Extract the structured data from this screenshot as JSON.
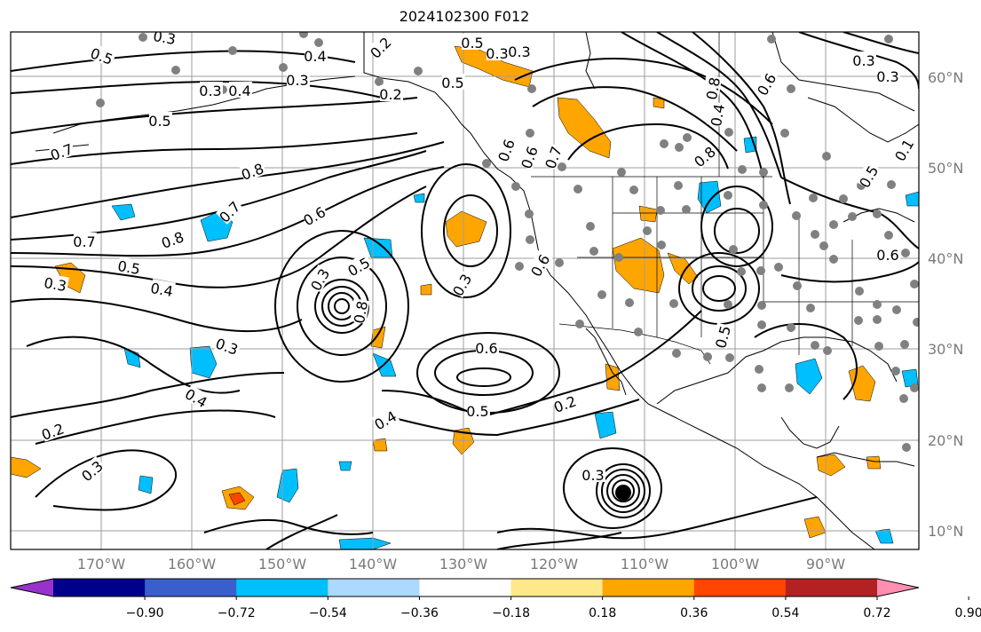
{
  "title": "2024102300 F012",
  "map": {
    "lat_labels": [
      "60°N",
      "50°N",
      "40°N",
      "30°N",
      "20°N",
      "10°N"
    ],
    "lon_labels": [
      "170°W",
      "160°W",
      "150°W",
      "140°W",
      "130°W",
      "120°W",
      "110°W",
      "100°W",
      "90°W"
    ],
    "contour_labels": [
      "0.5",
      "0.3",
      "0.4",
      "0.2",
      "0.3",
      "0.4",
      "0.3",
      "0.5",
      "0.5",
      "0.7",
      "0.8",
      "0.7",
      "0.6",
      "0.8",
      "0.7",
      "0.5",
      "0.4",
      "0.3",
      "0.3",
      "0.5",
      "0.8",
      "0.6",
      "0.6",
      "0.5",
      "0.3",
      "0.3",
      "0.2",
      "0.3",
      "0.4",
      "0.2",
      "0.3",
      "0.2",
      "0.4",
      "0.3",
      "0.7",
      "0.8",
      "0.6",
      "0.6",
      "0.5",
      "0.6",
      "0.3",
      "0.5",
      "0.3",
      "0.4",
      "0.3",
      "0.1",
      "0.6",
      "0.5",
      "0.8"
    ],
    "colors": {
      "positive_shading": "#ffa500",
      "positive_strong": "#ff4500",
      "negative_shading": "#00bfff",
      "contour": "#000000",
      "station_dot": "#808080",
      "grid": "#9e9e9e",
      "tick_label": "#7a7a7a"
    }
  },
  "colorbar": {
    "colors": [
      "#9932cc",
      "#00008b",
      "#3a5fcd",
      "#00bfff",
      "#add8ff",
      "#ffffff",
      "#ffe88a",
      "#ffa500",
      "#ff4500",
      "#b22222",
      "#ff8fb1"
    ],
    "ticks": [
      "−0.90",
      "−0.72",
      "−0.54",
      "−0.36",
      "−0.18",
      "0.18",
      "0.36",
      "0.54",
      "0.72",
      "0.90"
    ]
  }
}
